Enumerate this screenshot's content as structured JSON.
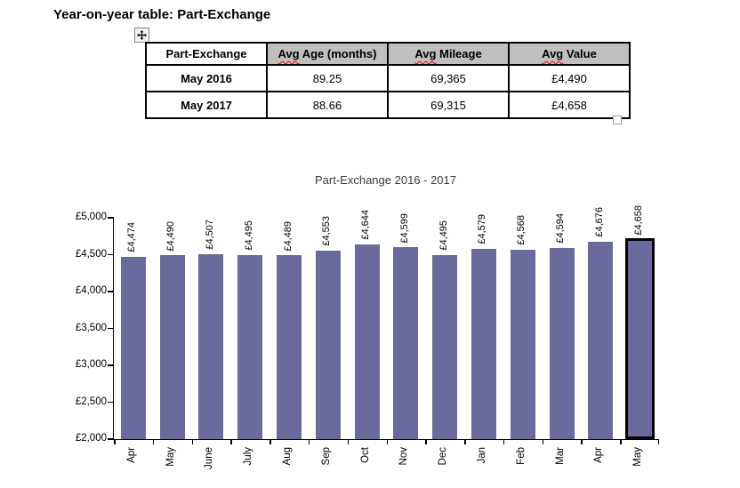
{
  "page_title": "Year-on-year table: Part-Exchange",
  "table": {
    "move_handle_icon": "table-move-icon",
    "resize_handle": "table-resize-handle",
    "headers": [
      {
        "label": "Part-Exchange",
        "shaded": false
      },
      {
        "label": "Avg Age (months)",
        "shaded": true,
        "spellcheck_word": "Avg"
      },
      {
        "label": "Avg Mileage",
        "shaded": true,
        "spellcheck_word": "Avg"
      },
      {
        "label": "Avg Value",
        "shaded": true,
        "spellcheck_word": "Avg"
      }
    ],
    "rows": [
      {
        "label": "May 2016",
        "values": [
          "89.25",
          "69,365",
          "£4,490"
        ]
      },
      {
        "label": "May 2017",
        "values": [
          "88.66",
          "69,315",
          "£4,658"
        ]
      }
    ]
  },
  "chart_data": {
    "type": "bar",
    "title": "Part-Exchange 2016 - 2017",
    "categories": [
      "Apr",
      "May",
      "June",
      "July",
      "Aug",
      "Sep",
      "Oct",
      "Nov",
      "Dec",
      "Jan",
      "Feb",
      "Mar",
      "Apr",
      "May"
    ],
    "values": [
      4474,
      4490,
      4507,
      4495,
      4489,
      4553,
      4644,
      4599,
      4495,
      4579,
      4568,
      4594,
      4676,
      4658
    ],
    "data_labels": [
      "£4,474",
      "£4,490",
      "£4,507",
      "£4,495",
      "£4,489",
      "£4,553",
      "£4,644",
      "£4,599",
      "£4,495",
      "£4,579",
      "£4,568",
      "£4,594",
      "£4,676",
      "£4,658"
    ],
    "highlighted_index": 13,
    "xlabel": "",
    "ylabel": "",
    "ylim": [
      2000,
      5000
    ],
    "ytick_step": 500,
    "ytick_labels": [
      "£2,000",
      "£2,500",
      "£3,000",
      "£3,500",
      "£4,000",
      "£4,500",
      "£5,000"
    ],
    "grid": false,
    "legend_position": "none",
    "bar_color": "#6A6A9D",
    "highlight_border_color": "#000000"
  },
  "colors": {
    "header_shade": "#BFBFBF",
    "table_border": "#000000",
    "spellcheck_underline": "#FF0000"
  }
}
